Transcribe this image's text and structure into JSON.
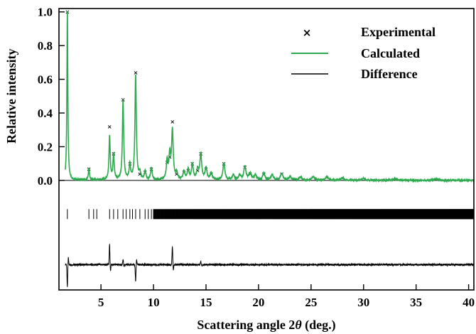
{
  "chart_data": {
    "type": "line",
    "xlabel_prefix": "Scattering angle 2",
    "xlabel_symbol": "θ",
    "xlabel_suffix": " (deg.)",
    "ylabel": "Relative intensity",
    "xlim": [
      1,
      40.5
    ],
    "ylim": [
      -0.65,
      1.02
    ],
    "x_ticks": [
      5,
      10,
      15,
      20,
      25,
      30,
      35,
      40
    ],
    "y_ticks": [
      0.0,
      0.2,
      0.4,
      0.6,
      0.8,
      1.0
    ],
    "y_tick_labels": [
      "0.0",
      "0.2",
      "0.4",
      "0.6",
      "0.8",
      "1.0"
    ],
    "legend": {
      "position": "top-right",
      "entries": [
        {
          "label": "Experimental",
          "marker": "×",
          "color": "#000000"
        },
        {
          "label": "Calculated",
          "color": "#2eaa4e"
        },
        {
          "label": "Difference",
          "color": "#000000"
        }
      ]
    },
    "peaks": [
      {
        "x": 1.8,
        "y": 1.0,
        "exp": 1.0
      },
      {
        "x": 3.85,
        "y": 0.07,
        "exp": 0.07
      },
      {
        "x": 5.82,
        "y": 0.26,
        "exp": 0.32
      },
      {
        "x": 6.2,
        "y": 0.15,
        "exp": 0.16
      },
      {
        "x": 7.1,
        "y": 0.47,
        "exp": 0.48
      },
      {
        "x": 7.75,
        "y": 0.09,
        "exp": 0.1
      },
      {
        "x": 8.3,
        "y": 0.62,
        "exp": 0.64
      },
      {
        "x": 8.7,
        "y": 0.04,
        "exp": 0.04
      },
      {
        "x": 9.2,
        "y": 0.05,
        "exp": 0.05
      },
      {
        "x": 9.8,
        "y": 0.07,
        "exp": 0.07
      },
      {
        "x": 11.3,
        "y": 0.11,
        "exp": 0.11
      },
      {
        "x": 11.55,
        "y": 0.14,
        "exp": 0.14
      },
      {
        "x": 11.8,
        "y": 0.29,
        "exp": 0.35
      },
      {
        "x": 12.2,
        "y": 0.04,
        "exp": 0.04
      },
      {
        "x": 12.9,
        "y": 0.05,
        "exp": 0.05
      },
      {
        "x": 13.3,
        "y": 0.06,
        "exp": 0.06
      },
      {
        "x": 13.7,
        "y": 0.09,
        "exp": 0.1
      },
      {
        "x": 14.2,
        "y": 0.06,
        "exp": 0.06
      },
      {
        "x": 14.5,
        "y": 0.15,
        "exp": 0.16
      },
      {
        "x": 15.0,
        "y": 0.07,
        "exp": 0.07
      },
      {
        "x": 15.5,
        "y": 0.04,
        "exp": 0.04
      },
      {
        "x": 16.7,
        "y": 0.1,
        "exp": 0.1
      },
      {
        "x": 17.6,
        "y": 0.03,
        "exp": 0.03
      },
      {
        "x": 18.2,
        "y": 0.03,
        "exp": 0.03
      },
      {
        "x": 18.7,
        "y": 0.08,
        "exp": 0.08
      },
      {
        "x": 19.2,
        "y": 0.04,
        "exp": 0.04
      },
      {
        "x": 19.7,
        "y": 0.03,
        "exp": 0.03
      },
      {
        "x": 20.5,
        "y": 0.04,
        "exp": 0.04
      },
      {
        "x": 21.3,
        "y": 0.03,
        "exp": 0.03
      },
      {
        "x": 22.2,
        "y": 0.04,
        "exp": 0.04
      },
      {
        "x": 23.0,
        "y": 0.02,
        "exp": 0.02
      },
      {
        "x": 24.0,
        "y": 0.02,
        "exp": 0.02
      },
      {
        "x": 25.2,
        "y": 0.02,
        "exp": 0.02
      },
      {
        "x": 26.5,
        "y": 0.02,
        "exp": 0.02
      },
      {
        "x": 28.0,
        "y": 0.015,
        "exp": 0.015
      },
      {
        "x": 30.0,
        "y": 0.012,
        "exp": 0.012
      },
      {
        "x": 33.0,
        "y": 0.01,
        "exp": 0.01
      },
      {
        "x": 37.0,
        "y": 0.008,
        "exp": 0.008
      }
    ],
    "reflection_ticks": {
      "y": -0.2,
      "isolated_x": [
        1.8,
        3.85,
        4.3,
        4.6,
        5.82,
        6.2,
        6.6,
        7.1,
        7.4,
        7.75,
        8.0,
        8.3,
        8.7,
        9.2,
        9.5,
        9.8
      ],
      "dense_from": 10.0,
      "dense_to": 40.5
    },
    "difference": {
      "baseline_y": -0.5,
      "spikes": [
        {
          "x": 1.8,
          "dy": -0.13
        },
        {
          "x": 5.82,
          "dy": 0.12
        },
        {
          "x": 7.1,
          "dy": 0.03
        },
        {
          "x": 8.3,
          "dy": -0.1
        },
        {
          "x": 11.8,
          "dy": 0.11
        },
        {
          "x": 14.5,
          "dy": 0.02
        }
      ]
    }
  }
}
